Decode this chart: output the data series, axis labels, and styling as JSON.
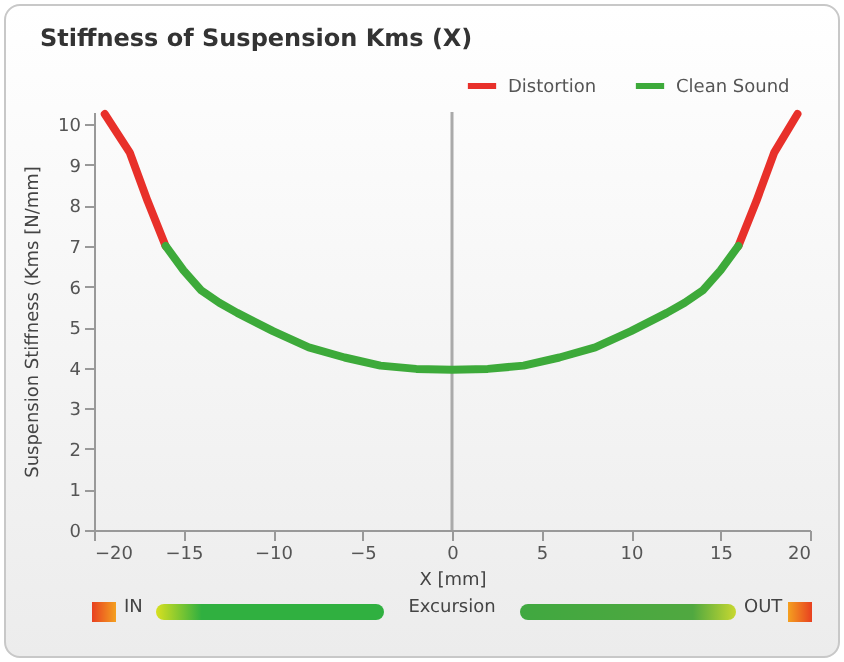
{
  "chart_data": {
    "type": "line",
    "title": "Stiffness of Suspension Kms (X)",
    "xlabel": "X [mm]",
    "ylabel": "Suspension Stiffness (Kms [N/mm]",
    "series": [
      {
        "name": "Distortion",
        "color": "#e8302a",
        "x": [
          -19.4,
          -18,
          -17,
          -16,
          0,
          16,
          17,
          18,
          19.3
        ],
        "values": [
          10.25,
          9.3,
          8.1,
          7.0,
          null,
          7.0,
          8.1,
          9.3,
          10.25
        ]
      },
      {
        "name": "Clean Sound",
        "color": "#3daa3a",
        "x": [
          -16,
          -15,
          -14,
          -13,
          -12,
          -10,
          -8,
          -6,
          -4,
          -2,
          0,
          2,
          4,
          6,
          8,
          10,
          12,
          13,
          14,
          15,
          16
        ],
        "values": [
          7.0,
          6.4,
          5.9,
          5.6,
          5.35,
          4.9,
          4.5,
          4.25,
          4.05,
          3.97,
          3.95,
          3.97,
          4.05,
          4.25,
          4.5,
          4.9,
          5.35,
          5.6,
          5.9,
          6.4,
          7.0
        ]
      }
    ],
    "xlim": [
      -20,
      20
    ],
    "xticks": [
      -20,
      -15,
      -10,
      -5,
      0,
      5,
      10,
      15,
      20
    ],
    "ylim": [
      0,
      10.3
    ],
    "yticks": [
      0,
      1,
      2,
      3,
      4,
      5,
      6,
      7,
      8,
      9,
      10
    ],
    "ref_lines": [
      {
        "axis": "x",
        "value": 0,
        "color": "#aaaaaa"
      }
    ],
    "legend": "top right",
    "grid": false,
    "marker": "none",
    "line_style": "solid",
    "annotations": [
      "IN",
      "Excursion",
      "OUT"
    ]
  }
}
